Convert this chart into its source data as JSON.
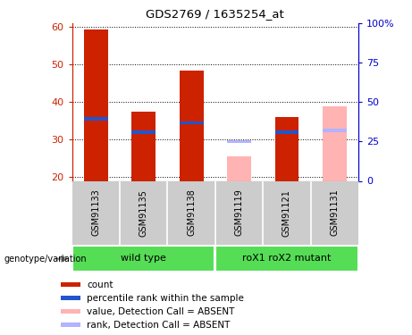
{
  "title": "GDS2769 / 1635254_at",
  "samples": [
    "GSM91133",
    "GSM91135",
    "GSM91138",
    "GSM91119",
    "GSM91121",
    "GSM91131"
  ],
  "ylim": [
    19,
    61
  ],
  "yticks_left": [
    20,
    30,
    40,
    50,
    60
  ],
  "yticks_right_pct": [
    0,
    25,
    50,
    75,
    100
  ],
  "bar_width": 0.5,
  "red_values": [
    59.5,
    37.5,
    48.5,
    null,
    36.0,
    null
  ],
  "blue_values": [
    35.5,
    32.0,
    34.5,
    null,
    32.0,
    null
  ],
  "pink_values": [
    null,
    null,
    null,
    25.5,
    null,
    39.0
  ],
  "light_blue_values": [
    null,
    null,
    null,
    29.5,
    null,
    32.5
  ],
  "red_color": "#cc2200",
  "blue_color": "#2255cc",
  "pink_color": "#ffb3b3",
  "light_blue_color": "#b3b3ff",
  "sample_box_color": "#cccccc",
  "group_color": "#55dd55",
  "group_edge_color": "#ffffff",
  "plot_bg": "#ffffff",
  "grid_color": "#000000",
  "left_axis_color": "#cc2200",
  "right_axis_color": "#0000cc",
  "wild_type_range": [
    0,
    2
  ],
  "mutant_range": [
    3,
    5
  ],
  "legend_items": [
    {
      "label": "count",
      "color": "#cc2200"
    },
    {
      "label": "percentile rank within the sample",
      "color": "#2255cc"
    },
    {
      "label": "value, Detection Call = ABSENT",
      "color": "#ffb3b3"
    },
    {
      "label": "rank, Detection Call = ABSENT",
      "color": "#b3b3ff"
    }
  ]
}
